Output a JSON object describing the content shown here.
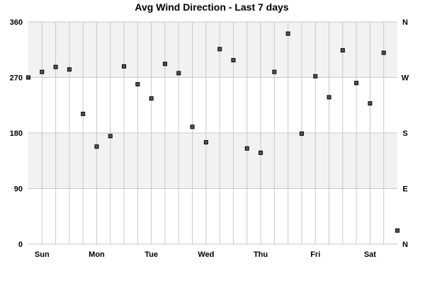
{
  "chart_data": {
    "type": "scatter",
    "title": "Avg Wind Direction - Last 7 days",
    "xlabel": "",
    "ylabel": "",
    "ylim": [
      0,
      360
    ],
    "yticks": [
      0,
      90,
      180,
      270,
      360
    ],
    "compass_labels": [
      {
        "value": 0,
        "label": "N"
      },
      {
        "value": 90,
        "label": "E"
      },
      {
        "value": 180,
        "label": "S"
      },
      {
        "value": 270,
        "label": "W"
      },
      {
        "value": 360,
        "label": "N"
      }
    ],
    "x_categories": [
      "Sun",
      "Mon",
      "Tue",
      "Wed",
      "Thu",
      "Fri",
      "Sat"
    ],
    "grid": true,
    "bands": [
      [
        90,
        180
      ],
      [
        270,
        360
      ]
    ],
    "colors": {
      "band": "#f2f2f2",
      "grid": "#c8c8c8",
      "marker_fill": "#555555",
      "marker_stroke": "#000000"
    },
    "points": [
      270,
      279,
      287,
      283,
      211,
      158,
      175,
      288,
      259,
      236,
      292,
      277,
      190,
      165,
      316,
      298,
      155,
      148,
      279,
      341,
      179,
      272,
      238,
      314,
      261,
      228,
      310,
      22
    ]
  }
}
